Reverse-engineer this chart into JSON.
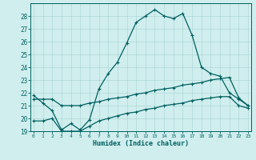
{
  "xlabel": "Humidex (Indice chaleur)",
  "background_color": "#d0eeee",
  "grid_color": "#b0d8d8",
  "line_color": "#006060",
  "x_values": [
    0,
    1,
    2,
    3,
    4,
    5,
    6,
    7,
    8,
    9,
    10,
    11,
    12,
    13,
    14,
    15,
    16,
    17,
    18,
    19,
    20,
    21,
    22,
    23
  ],
  "line1": [
    21.8,
    21.2,
    20.6,
    19.1,
    19.6,
    19.1,
    19.9,
    22.3,
    23.5,
    24.4,
    25.9,
    27.5,
    28.0,
    28.5,
    28.0,
    27.8,
    28.2,
    26.5,
    24.0,
    23.5,
    23.3,
    22.0,
    21.5,
    21.0
  ],
  "line2": [
    21.5,
    21.5,
    21.5,
    21.0,
    21.0,
    21.0,
    21.2,
    21.3,
    21.5,
    21.6,
    21.7,
    21.9,
    22.0,
    22.2,
    22.3,
    22.4,
    22.6,
    22.7,
    22.8,
    23.0,
    23.1,
    23.2,
    21.6,
    21.0
  ],
  "line3": [
    19.8,
    19.8,
    20.0,
    19.0,
    19.0,
    19.0,
    19.4,
    19.8,
    20.0,
    20.2,
    20.4,
    20.5,
    20.7,
    20.8,
    21.0,
    21.1,
    21.2,
    21.4,
    21.5,
    21.6,
    21.7,
    21.7,
    21.0,
    20.8
  ],
  "ylim": [
    19,
    29
  ],
  "xlim": [
    -0.3,
    23.3
  ],
  "yticks": [
    19,
    20,
    21,
    22,
    23,
    24,
    25,
    26,
    27,
    28
  ],
  "xticks": [
    0,
    1,
    2,
    3,
    4,
    5,
    6,
    7,
    8,
    9,
    10,
    11,
    12,
    13,
    14,
    15,
    16,
    17,
    18,
    19,
    20,
    21,
    22,
    23
  ]
}
